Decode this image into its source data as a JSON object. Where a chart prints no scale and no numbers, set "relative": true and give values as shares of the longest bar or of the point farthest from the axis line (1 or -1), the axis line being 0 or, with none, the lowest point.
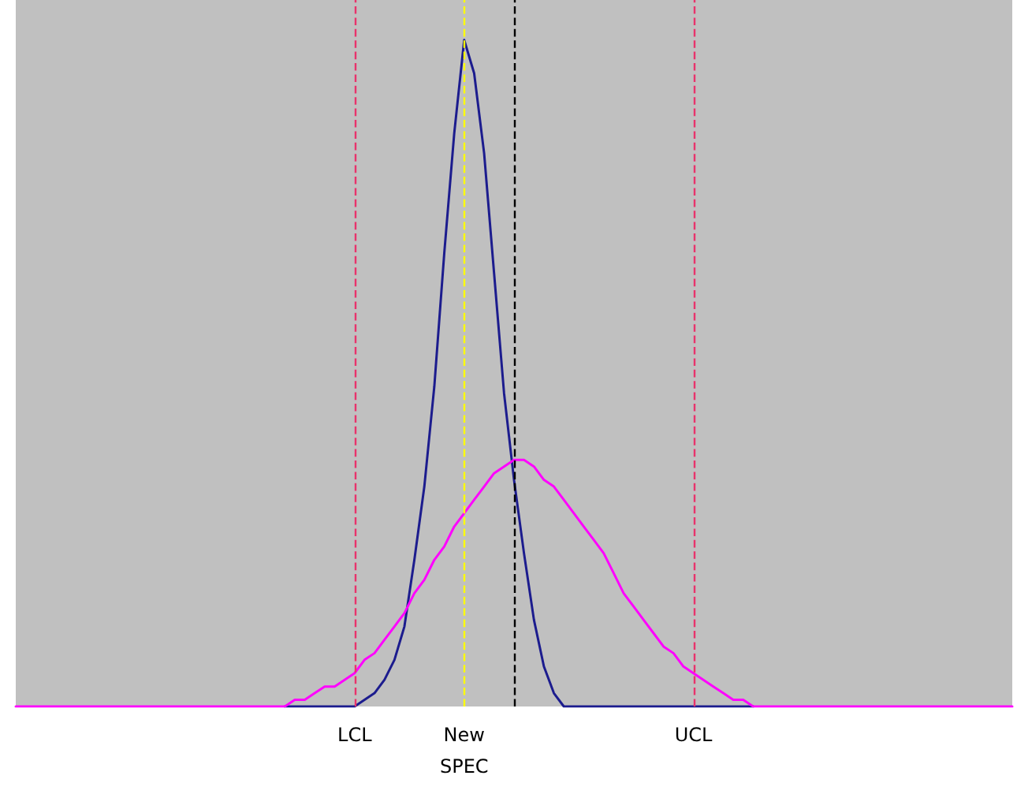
{
  "chart_data": {
    "type": "line",
    "relative": true,
    "marker": "none",
    "line_style": "solid",
    "categories": [
      null,
      null,
      null,
      null,
      null,
      null,
      null,
      null,
      null,
      null,
      null,
      null,
      null,
      null,
      null,
      null,
      null,
      null,
      null,
      null,
      null,
      null,
      null,
      null,
      null,
      null,
      null,
      null,
      null,
      null,
      null,
      null,
      null,
      null,
      "LCL",
      null,
      null,
      null,
      null,
      null,
      null,
      null,
      null,
      null,
      null,
      "New SPEC",
      null,
      null,
      null,
      null,
      null,
      null,
      null,
      null,
      null,
      null,
      null,
      null,
      null,
      null,
      null,
      null,
      null,
      null,
      null,
      null,
      null,
      null,
      "UCL",
      null,
      null,
      null,
      null,
      null,
      null,
      null,
      null,
      null,
      null,
      null,
      null,
      null,
      null,
      null,
      null,
      null,
      null,
      null,
      null,
      null,
      null,
      null,
      null,
      null,
      null,
      null,
      null,
      null,
      null,
      null,
      null
    ],
    "series": [
      {
        "color": "#1c1c8e",
        "values": [
          null,
          null,
          null,
          null,
          null,
          null,
          null,
          null,
          null,
          null,
          null,
          null,
          null,
          null,
          null,
          null,
          null,
          null,
          null,
          null,
          null,
          null,
          null,
          null,
          null,
          null,
          null,
          0,
          0,
          0,
          0,
          0,
          0,
          0,
          0,
          0.01,
          0.02,
          0.04,
          0.07,
          0.12,
          0.22,
          0.33,
          0.48,
          0.68,
          0.86,
          1,
          0.95,
          0.83,
          0.65,
          0.47,
          0.34,
          0.23,
          0.13,
          0.06,
          0.02,
          0,
          0,
          0,
          0,
          0,
          0,
          0,
          0,
          0,
          0,
          0,
          0,
          0,
          0,
          0,
          0,
          0,
          0,
          0,
          0,
          null,
          null,
          null,
          null,
          null,
          null,
          null,
          null,
          null,
          null,
          null,
          null,
          null,
          null,
          null,
          null,
          null,
          null,
          null,
          null,
          null,
          null,
          null,
          null,
          null,
          null
        ]
      },
      {
        "color": "#ff00ff",
        "values": [
          0,
          0,
          0,
          0,
          0,
          0,
          0,
          0,
          0,
          0,
          0,
          0,
          0,
          0,
          0,
          0,
          0,
          0,
          0,
          0,
          0,
          0,
          0,
          0,
          0,
          0,
          0,
          0,
          0.01,
          0.01,
          0.02,
          0.03,
          0.03,
          0.04,
          0.05,
          0.07,
          0.08,
          0.1,
          0.12,
          0.14,
          0.17,
          0.19,
          0.22,
          0.24,
          0.27,
          0.29,
          0.31,
          0.33,
          0.35,
          0.36,
          0.37,
          0.37,
          0.36,
          0.34,
          0.33,
          0.31,
          0.29,
          0.27,
          0.25,
          0.23,
          0.2,
          0.17,
          0.15,
          0.13,
          0.11,
          0.09,
          0.08,
          0.06,
          0.05,
          0.04,
          0.03,
          0.02,
          0.01,
          0.01,
          0,
          0,
          0,
          0,
          0,
          0,
          0,
          0,
          0,
          0,
          0,
          0,
          0,
          0,
          0,
          0,
          0,
          0,
          0,
          0,
          0,
          0,
          0,
          0,
          0,
          0,
          0
        ]
      }
    ],
    "ref_lines": [
      {
        "axis": "x",
        "value": "LCL",
        "color": "#e8336b",
        "line_style": "dashed"
      },
      {
        "axis": "x",
        "value": "New SPEC",
        "color": "#ffff00",
        "line_style": "dashed"
      },
      {
        "axis": "x",
        "value": "UCL",
        "color": "#e8336b",
        "line_style": "dashed"
      }
    ]
  }
}
